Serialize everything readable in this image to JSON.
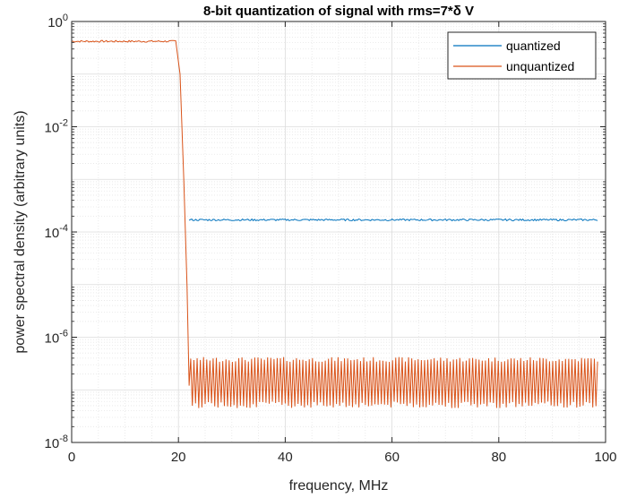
{
  "chart_data": {
    "type": "line",
    "title": "8-bit quantization of signal with rms=7*δ V",
    "xlabel": "frequency, MHz",
    "ylabel": "power spectral density (arbitrary units)",
    "xlim": [
      0,
      100
    ],
    "ylim": [
      1e-08,
      1
    ],
    "yscale": "log",
    "grid": true,
    "minor_grid": true,
    "legend_position": "top-right",
    "x_ticks": [
      "0",
      "20",
      "40",
      "60",
      "80",
      "100"
    ],
    "y_ticks": [
      {
        "base": "10",
        "exp": "-8"
      },
      {
        "base": "10",
        "exp": "-6"
      },
      {
        "base": "10",
        "exp": "-4"
      },
      {
        "base": "10",
        "exp": "-2"
      },
      {
        "base": "10",
        "exp": "0"
      }
    ],
    "series": [
      {
        "name": "quantized",
        "color": "#0072BD",
        "x": [
          22,
          30,
          40,
          50,
          60,
          70,
          80,
          90,
          98.5
        ],
        "y": [
          0.00017,
          0.00017,
          0.00017,
          0.00017,
          0.00017,
          0.00017,
          0.00017,
          0.00017,
          0.00017
        ]
      },
      {
        "name": "unquantized",
        "color": "#D95319",
        "x": [
          0,
          5,
          10,
          15,
          19.5,
          20.3,
          21,
          21.6,
          22,
          98.5
        ],
        "y": [
          0.42,
          0.42,
          0.42,
          0.42,
          0.42,
          0.1,
          0.001,
          1e-05,
          1.2e-07,
          2e-07
        ],
        "ripple_band": {
          "x_start": 22.3,
          "x_end": 98.5,
          "y_low": 5e-08,
          "y_high": 4e-07
        }
      }
    ]
  }
}
